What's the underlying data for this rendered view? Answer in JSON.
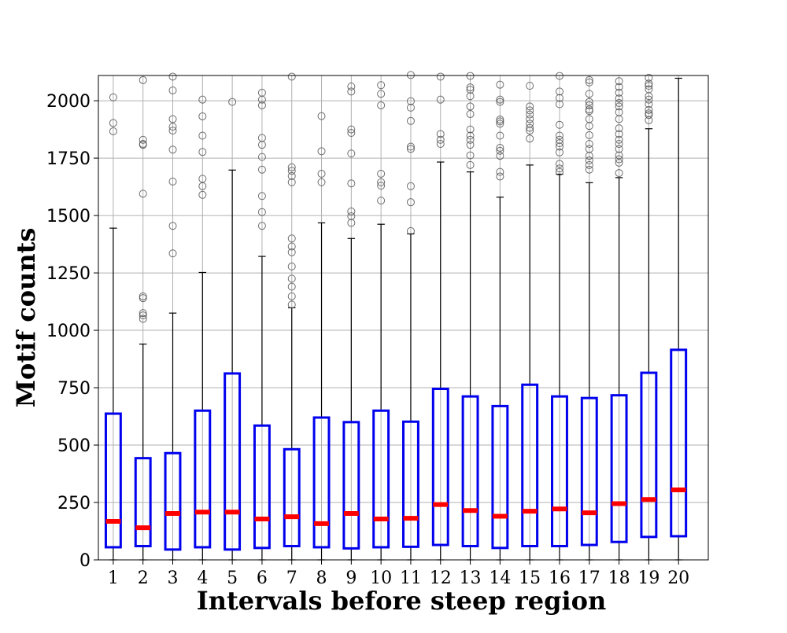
{
  "chart_data": {
    "type": "box",
    "title": "",
    "xlabel": "Intervals before steep region",
    "ylabel": "Motif counts",
    "ylim": [
      0,
      2110
    ],
    "yticks": [
      0,
      250,
      500,
      750,
      1000,
      1250,
      1500,
      1750,
      2000
    ],
    "grid": true,
    "colors": {
      "box": "#0000ee",
      "median": "#ff0000",
      "whisker": "#000000",
      "outlier": "#555555",
      "grid": "#b0b0b0"
    },
    "categories": [
      "1",
      "2",
      "3",
      "4",
      "5",
      "6",
      "7",
      "8",
      "9",
      "10",
      "11",
      "12",
      "13",
      "14",
      "15",
      "16",
      "17",
      "18",
      "19",
      "20"
    ],
    "boxes": [
      {
        "q1": 55,
        "median": 168,
        "q3": 637,
        "whisker_low": 0,
        "whisker_high": 1445,
        "outliers": [
          1867,
          1903,
          2015
        ]
      },
      {
        "q1": 60,
        "median": 140,
        "q3": 443,
        "whisker_low": 0,
        "whisker_high": 940,
        "outliers": [
          1050,
          1065,
          1075,
          1140,
          1148,
          1595,
          1808,
          1812,
          1830,
          2090
        ]
      },
      {
        "q1": 45,
        "median": 202,
        "q3": 465,
        "whisker_low": 0,
        "whisker_high": 1075,
        "outliers": [
          1335,
          1455,
          1648,
          1787,
          1870,
          1887,
          1920,
          2045,
          2105
        ]
      },
      {
        "q1": 55,
        "median": 208,
        "q3": 650,
        "whisker_low": 0,
        "whisker_high": 1252,
        "outliers": [
          1590,
          1628,
          1660,
          1777,
          1848,
          1932,
          2005
        ]
      },
      {
        "q1": 45,
        "median": 208,
        "q3": 812,
        "whisker_low": 0,
        "whisker_high": 1698,
        "outliers": [
          1995
        ]
      },
      {
        "q1": 52,
        "median": 178,
        "q3": 585,
        "whisker_low": 0,
        "whisker_high": 1322,
        "outliers": [
          1455,
          1515,
          1585,
          1700,
          1755,
          1808,
          1838,
          1980,
          2005,
          2035
        ]
      },
      {
        "q1": 60,
        "median": 188,
        "q3": 482,
        "whisker_low": 0,
        "whisker_high": 1098,
        "outliers": [
          1112,
          1148,
          1190,
          1225,
          1278,
          1340,
          1365,
          1400,
          1645,
          1672,
          1695,
          1710,
          2105
        ]
      },
      {
        "q1": 55,
        "median": 158,
        "q3": 620,
        "whisker_low": 0,
        "whisker_high": 1468,
        "outliers": [
          1645,
          1682,
          1780,
          1933
        ]
      },
      {
        "q1": 50,
        "median": 202,
        "q3": 600,
        "whisker_low": 0,
        "whisker_high": 1400,
        "outliers": [
          1468,
          1497,
          1518,
          1640,
          1770,
          1860,
          1875,
          2040,
          2062
        ]
      },
      {
        "q1": 55,
        "median": 178,
        "q3": 650,
        "whisker_low": 0,
        "whisker_high": 1462,
        "outliers": [
          1565,
          1630,
          1645,
          1682,
          1980,
          2030,
          2068
        ]
      },
      {
        "q1": 57,
        "median": 181,
        "q3": 602,
        "whisker_low": 0,
        "whisker_high": 1420,
        "outliers": [
          1432,
          1558,
          1628,
          1790,
          1800,
          1912,
          1970,
          1998,
          2112
        ]
      },
      {
        "q1": 65,
        "median": 241,
        "q3": 745,
        "whisker_low": 0,
        "whisker_high": 1733,
        "outliers": [
          1812,
          1830,
          1855,
          2005,
          2105
        ]
      },
      {
        "q1": 60,
        "median": 215,
        "q3": 712,
        "whisker_low": 0,
        "whisker_high": 1690,
        "outliers": [
          1720,
          1762,
          1808,
          1830,
          1848,
          1875,
          1942,
          1975,
          2020,
          2048,
          2058,
          2108
        ]
      },
      {
        "q1": 52,
        "median": 190,
        "q3": 670,
        "whisker_low": 0,
        "whisker_high": 1580,
        "outliers": [
          1670,
          1690,
          1760,
          1782,
          1795,
          1848,
          1900,
          1910,
          1918,
          1995,
          2005,
          2070
        ]
      },
      {
        "q1": 60,
        "median": 212,
        "q3": 763,
        "whisker_low": 0,
        "whisker_high": 1720,
        "outliers": [
          1835,
          1870,
          1882,
          1900,
          1920,
          1940,
          1958,
          1975,
          2065
        ]
      },
      {
        "q1": 60,
        "median": 222,
        "q3": 712,
        "whisker_low": 0,
        "whisker_high": 1680,
        "outliers": [
          1690,
          1705,
          1725,
          1775,
          1800,
          1815,
          1830,
          1848,
          1895,
          1985,
          2012,
          2040,
          2108
        ]
      },
      {
        "q1": 65,
        "median": 205,
        "q3": 705,
        "whisker_low": 0,
        "whisker_high": 1643,
        "outliers": [
          1700,
          1720,
          1740,
          1760,
          1790,
          1812,
          1850,
          1890,
          1920,
          1955,
          1962,
          1980,
          1995,
          2030,
          2080,
          2090
        ]
      },
      {
        "q1": 78,
        "median": 245,
        "q3": 717,
        "whisker_low": 0,
        "whisker_high": 1665,
        "outliers": [
          1685,
          1730,
          1745,
          1762,
          1790,
          1812,
          1830,
          1855,
          1880,
          1920,
          1950,
          1975,
          1990,
          2010,
          2035,
          2060,
          2085
        ]
      },
      {
        "q1": 100,
        "median": 263,
        "q3": 815,
        "whisker_low": 0,
        "whisker_high": 1878,
        "outliers": [
          1915,
          1938,
          1945,
          1960,
          1985,
          2005,
          2020,
          2050,
          2065,
          2075,
          2100
        ]
      },
      {
        "q1": 103,
        "median": 305,
        "q3": 915,
        "whisker_low": 0,
        "whisker_high": 2098,
        "outliers": []
      }
    ]
  }
}
